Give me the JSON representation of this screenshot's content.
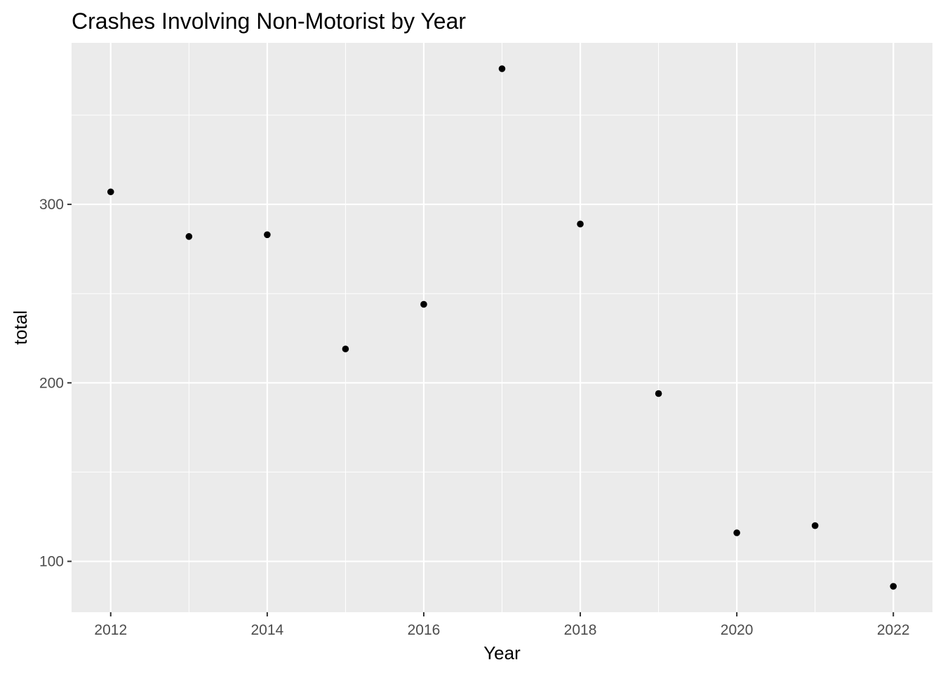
{
  "chart_data": {
    "type": "scatter",
    "title": "Crashes Involving Non-Motorist by Year",
    "xlabel": "Year",
    "ylabel": "total",
    "x": [
      2012,
      2013,
      2014,
      2015,
      2016,
      2017,
      2018,
      2019,
      2020,
      2021,
      2022
    ],
    "y": [
      307,
      282,
      283,
      219,
      244,
      376,
      289,
      194,
      116,
      120,
      86
    ],
    "x_ticks": [
      2012,
      2014,
      2016,
      2018,
      2020,
      2022
    ],
    "x_tick_labels": [
      "2012",
      "2014",
      "2016",
      "2018",
      "2020",
      "2022"
    ],
    "y_ticks": [
      100,
      200,
      300
    ],
    "y_tick_labels": [
      "100",
      "200",
      "300"
    ],
    "xlim": [
      2011.5,
      2022.5
    ],
    "ylim": [
      71.5,
      390.5
    ],
    "grid": true,
    "colors": {
      "panel_background": "#EBEBEB",
      "grid_line": "#FFFFFF",
      "point": "#000000",
      "tick_text": "#4D4D4D",
      "axis_text": "#000000"
    }
  }
}
